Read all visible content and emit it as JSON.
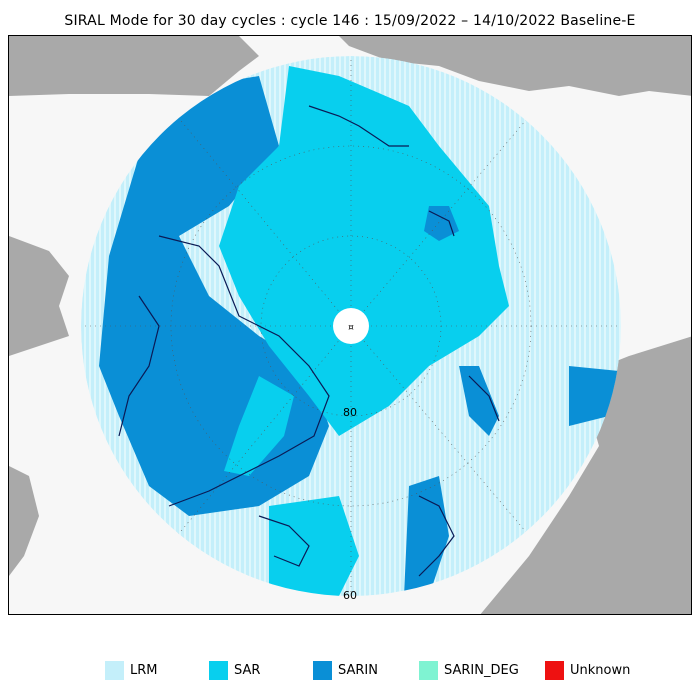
{
  "title": "SIRAL Mode for 30 day cycles : cycle 146 : 15/09/2022 – 14/10/2022 Baseline-E",
  "map": {
    "latitude_labels": [
      "80",
      "60"
    ],
    "pole_marker": "¤"
  },
  "legend": [
    {
      "label": "LRM",
      "color": "#c4effa"
    },
    {
      "label": "SAR",
      "color": "#08cfee"
    },
    {
      "label": "SARIN",
      "color": "#0a8fd6"
    },
    {
      "label": "SARIN_DEG",
      "color": "#7ff3d2"
    },
    {
      "label": "Unknown",
      "color": "#ee1111"
    }
  ],
  "colors": {
    "land": "#a9a9a9",
    "ocean": "#f7f7f7",
    "coastline": "#0a1a55"
  }
}
